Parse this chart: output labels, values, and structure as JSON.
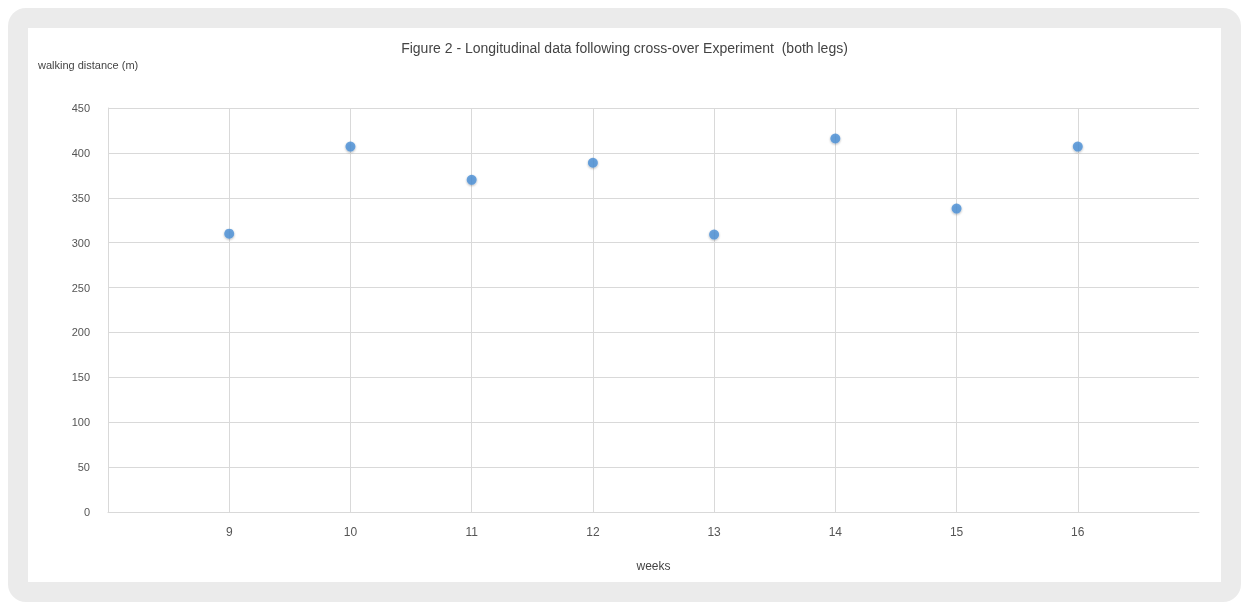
{
  "chart_data": {
    "type": "scatter",
    "title": "Figure 2 - Longitudinal data following cross-over Experiment  (both legs)",
    "xlabel": "weeks",
    "ylabel": "walking distance (m)",
    "x": [
      9,
      10,
      11,
      12,
      13,
      14,
      15,
      16
    ],
    "series": [
      {
        "color": "#4a8fd6",
        "values": [
          310,
          407,
          370,
          389,
          309,
          416,
          338,
          407
        ]
      }
    ],
    "xlim": [
      8,
      17
    ],
    "xticks": [
      9,
      10,
      11,
      12,
      13,
      14,
      15,
      16
    ],
    "ylim": [
      0,
      450
    ],
    "yticks": [
      0,
      50,
      100,
      150,
      200,
      250,
      300,
      350,
      400,
      450
    ],
    "grid": true,
    "marker": "circle"
  }
}
